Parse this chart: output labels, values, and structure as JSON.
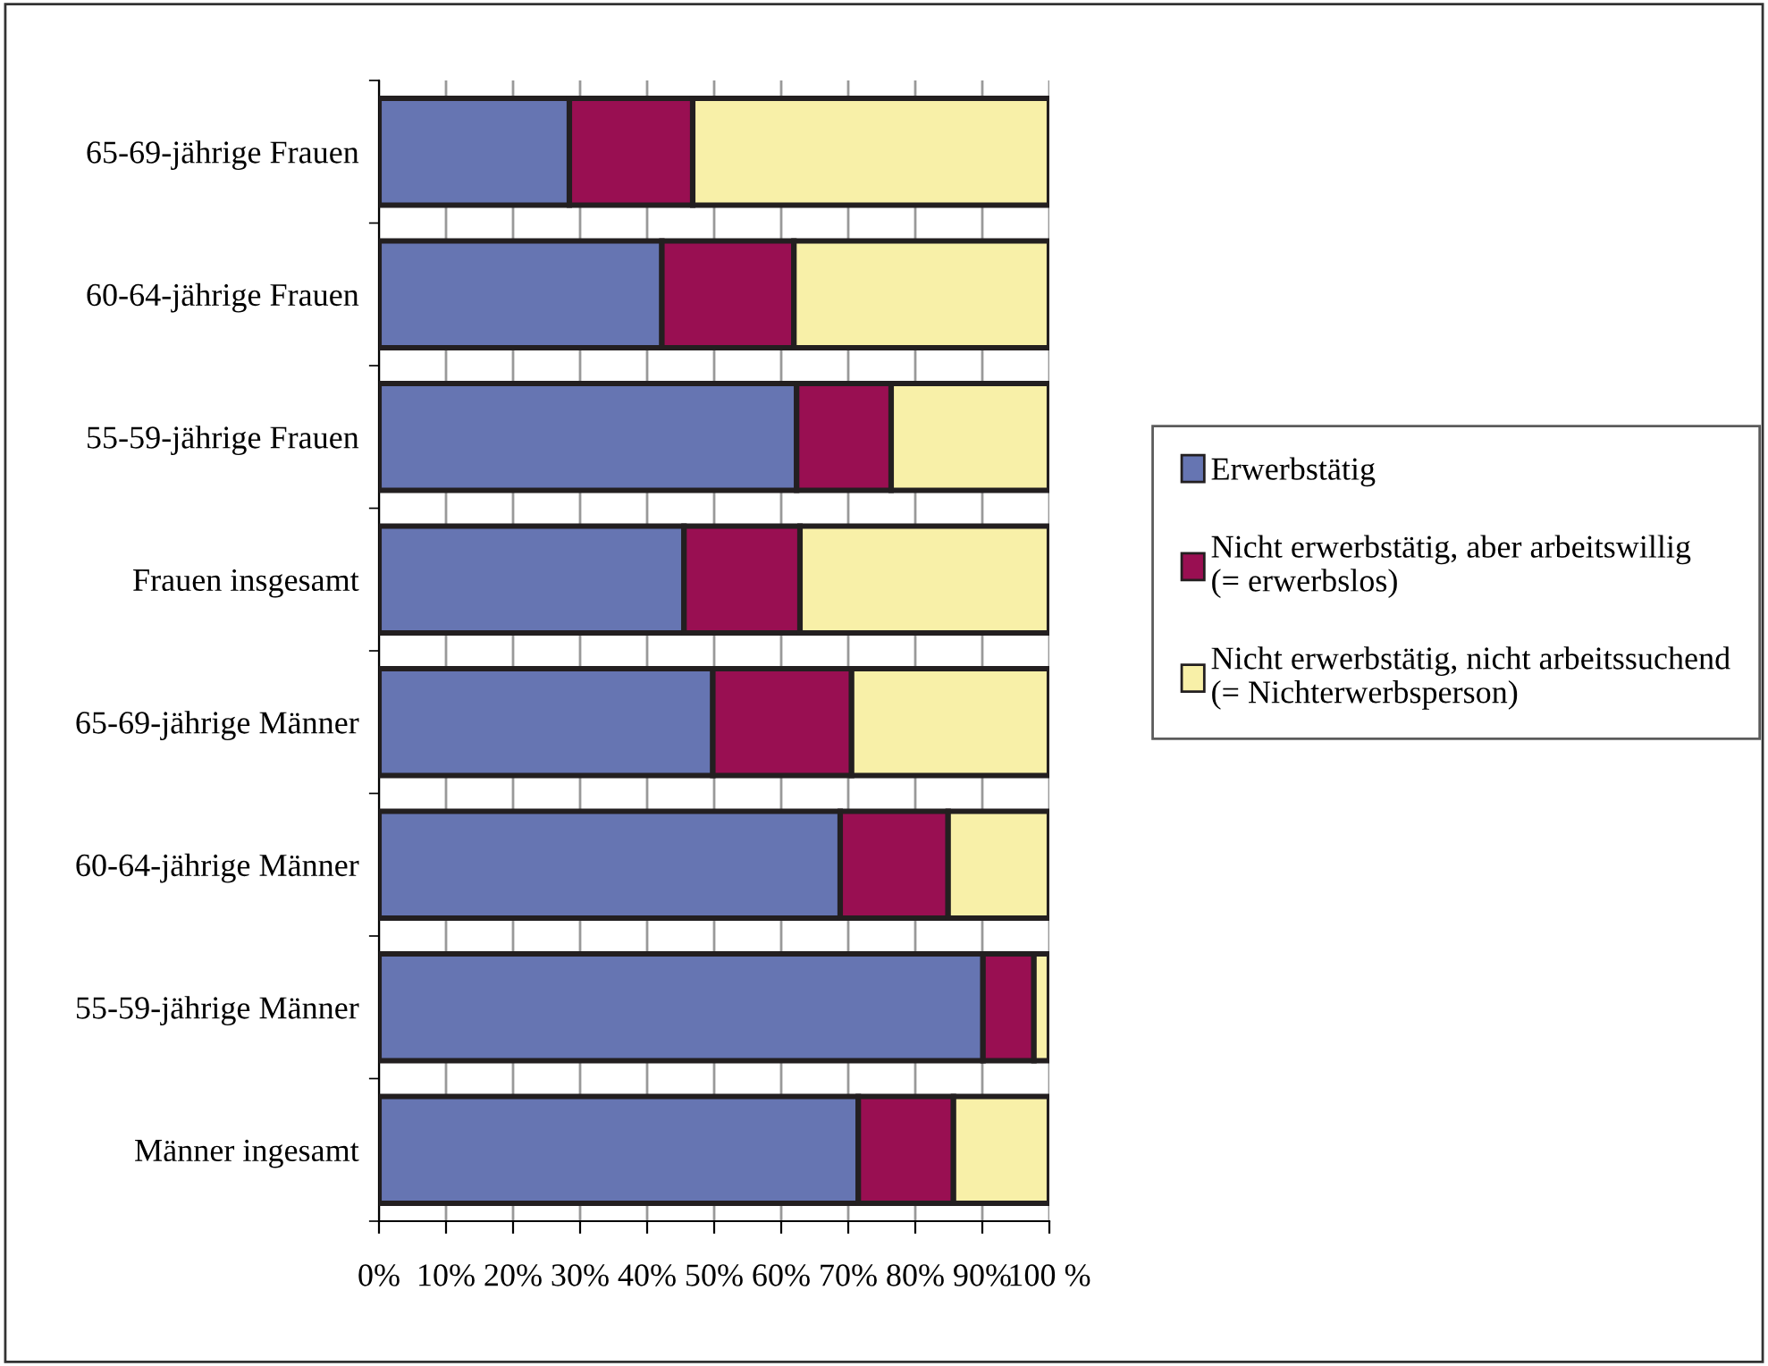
{
  "chart_data": {
    "type": "bar",
    "orientation": "horizontal",
    "stacked": true,
    "categories": [
      "65-69-jährige Frauen",
      "60-64-jährige Frauen",
      "55-59-jährige Frauen",
      "Frauen insgesamt",
      "65-69-jährige Männer",
      "60-64-jährige Männer",
      "55-59-jährige Männer",
      "Männer ingesamt"
    ],
    "series": [
      {
        "name": "Erwerbstätig",
        "color": "#6675b2",
        "values": [
          28.4,
          42.2,
          62.3,
          45.5,
          49.8,
          68.8,
          90.1,
          71.5
        ]
      },
      {
        "name": "Nicht erwerbstätig, aber arbeitswillig\n(= erwerbslos)",
        "color": "#990f52",
        "values": [
          18.4,
          19.7,
          14.1,
          17.3,
          20.7,
          16.1,
          7.6,
          14.2
        ]
      },
      {
        "name": "Nicht erwerbstätig, nicht arbeitssuchend\n(= Nichterwerbsperson)",
        "color": "#f8f0a8",
        "values": [
          53.2,
          38.1,
          23.6,
          37.2,
          29.5,
          15.1,
          2.3,
          14.3
        ]
      }
    ],
    "xlim": [
      0,
      100
    ],
    "xticks": [
      {
        "value": 0,
        "label": "0%"
      },
      {
        "value": 10,
        "label": "10%"
      },
      {
        "value": 20,
        "label": "20%"
      },
      {
        "value": 30,
        "label": "30%"
      },
      {
        "value": 40,
        "label": "40%"
      },
      {
        "value": 50,
        "label": "50%"
      },
      {
        "value": 60,
        "label": "60%"
      },
      {
        "value": 70,
        "label": "70%"
      },
      {
        "value": 80,
        "label": "80%"
      },
      {
        "value": 90,
        "label": "90%"
      },
      {
        "value": 100,
        "label": "100 %"
      }
    ],
    "grid": "x",
    "legend": "right"
  }
}
